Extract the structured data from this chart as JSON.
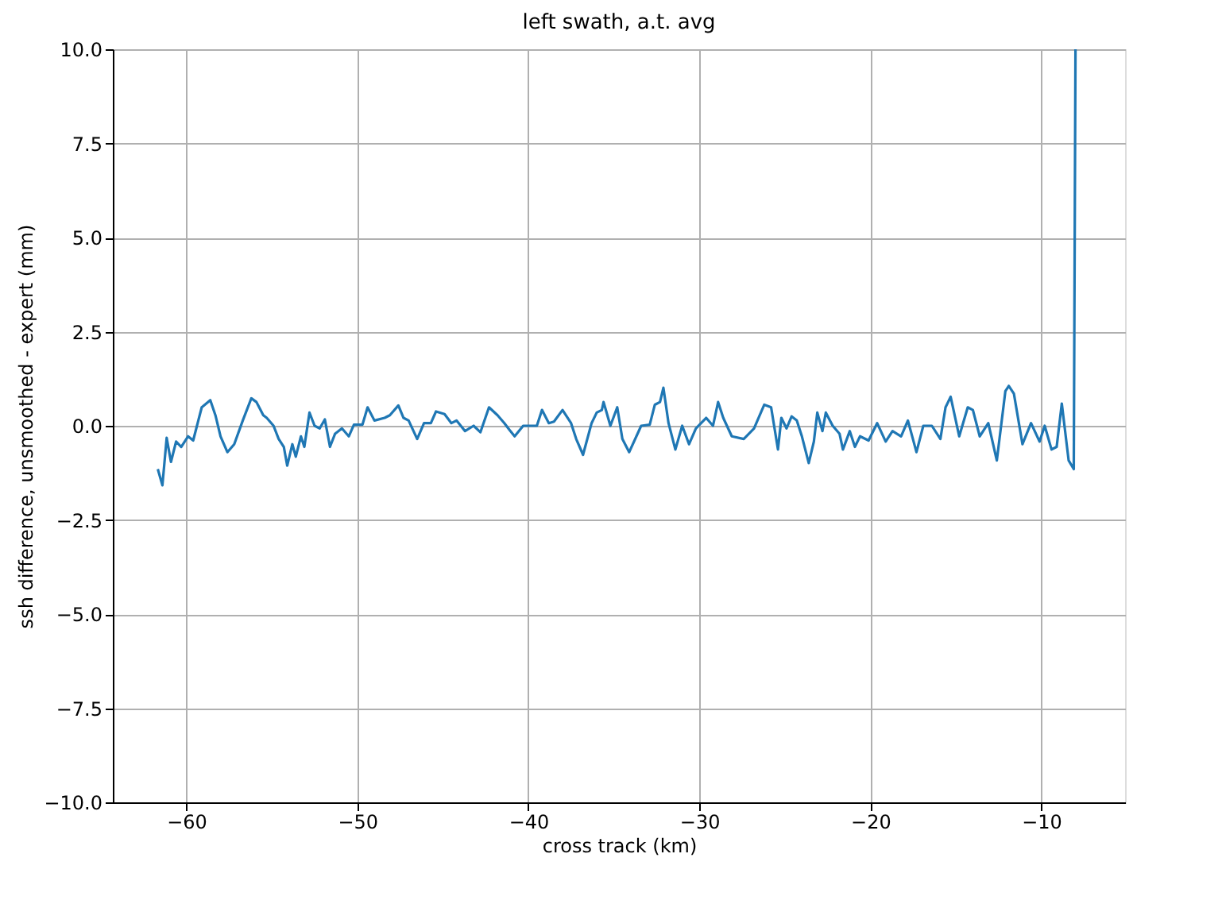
{
  "chart_data": {
    "type": "line",
    "title": "left swath, a.t. avg",
    "xlabel": "cross track (km)",
    "ylabel": "ssh difference, unsmoothed - expert (mm)",
    "xlim": [
      -64.3,
      -5.1
    ],
    "xticks": [
      -60,
      -50,
      -40,
      -30,
      -20,
      -10
    ],
    "ylim": [
      -10,
      10
    ],
    "yticks": [
      {
        "value": -10,
        "label": "−10.0"
      },
      {
        "value": -7.5,
        "label": "−7.5"
      },
      {
        "value": -5,
        "label": "−5.0"
      },
      {
        "value": -2.5,
        "label": "−2.5"
      },
      {
        "value": 0,
        "label": "0.0"
      },
      {
        "value": 2.5,
        "label": "2.5"
      },
      {
        "value": 5,
        "label": "5.0"
      },
      {
        "value": 7.5,
        "label": "7.5"
      },
      {
        "value": 10,
        "label": "10.0"
      }
    ],
    "grid": true,
    "marker": "none",
    "line_style": "solid",
    "series": [
      {
        "color": "#1f77b4",
        "x": [
          -61.67,
          -61.4,
          -61.15,
          -60.9,
          -60.6,
          -60.3,
          -59.9,
          -59.6,
          -59.3,
          -59.1,
          -58.6,
          -58.3,
          -58.0,
          -57.6,
          -57.2,
          -56.7,
          -56.2,
          -55.9,
          -55.5,
          -55.3,
          -54.9,
          -54.6,
          -54.3,
          -54.1,
          -53.8,
          -53.6,
          -53.3,
          -53.1,
          -52.8,
          -52.5,
          -52.2,
          -51.9,
          -51.6,
          -51.3,
          -50.9,
          -50.5,
          -50.2,
          -49.7,
          -49.4,
          -49.0,
          -48.4,
          -48.1,
          -47.6,
          -47.3,
          -47.0,
          -46.5,
          -46.1,
          -45.7,
          -45.4,
          -44.9,
          -44.5,
          -44.2,
          -43.7,
          -43.2,
          -42.8,
          -42.3,
          -41.8,
          -41.4,
          -41.1,
          -40.8,
          -40.3,
          -39.5,
          -39.2,
          -38.8,
          -38.5,
          -38.0,
          -37.5,
          -37.2,
          -36.8,
          -36.3,
          -36.0,
          -35.7,
          -35.6,
          -35.2,
          -34.8,
          -34.5,
          -34.1,
          -33.4,
          -32.9,
          -32.6,
          -32.3,
          -32.1,
          -31.8,
          -31.4,
          -31.0,
          -30.6,
          -30.2,
          -29.6,
          -29.2,
          -28.9,
          -28.6,
          -28.1,
          -27.4,
          -26.8,
          -26.2,
          -25.8,
          -25.4,
          -25.2,
          -24.9,
          -24.6,
          -24.3,
          -24.0,
          -23.6,
          -23.3,
          -23.1,
          -22.8,
          -22.6,
          -22.2,
          -21.8,
          -21.6,
          -21.2,
          -20.9,
          -20.6,
          -20.1,
          -19.6,
          -19.1,
          -18.7,
          -18.2,
          -17.8,
          -17.3,
          -16.9,
          -16.4,
          -15.9,
          -15.6,
          -15.3,
          -14.8,
          -14.3,
          -14.0,
          -13.6,
          -13.1,
          -12.6,
          -12.1,
          -11.9,
          -11.6,
          -11.1,
          -10.6,
          -10.1,
          -9.8,
          -9.4,
          -9.1,
          -8.8,
          -8.4,
          -8.1,
          -8.0
        ],
        "values": [
          -1.15,
          -1.58,
          -0.32,
          -0.96,
          -0.42,
          -0.56,
          -0.28,
          -0.39,
          0.14,
          0.49,
          0.68,
          0.28,
          -0.28,
          -0.7,
          -0.49,
          0.14,
          0.73,
          0.63,
          0.28,
          0.21,
          0,
          -0.35,
          -0.56,
          -1.06,
          -0.49,
          -0.82,
          -0.28,
          -0.56,
          0.35,
          0,
          -0.07,
          0.17,
          -0.56,
          -0.21,
          -0.07,
          -0.28,
          0.03,
          0.03,
          0.49,
          0.14,
          0.21,
          0.28,
          0.54,
          0.21,
          0.14,
          -0.35,
          0.07,
          0.07,
          0.38,
          0.31,
          0.07,
          0.14,
          -0.14,
          0,
          -0.17,
          0.49,
          0.28,
          0.07,
          -0.11,
          -0.28,
          0,
          0,
          0.42,
          0.07,
          0.11,
          0.42,
          0.07,
          -0.35,
          -0.77,
          0.07,
          0.35,
          0.42,
          0.63,
          0,
          0.49,
          -0.35,
          -0.7,
          0,
          0.03,
          0.56,
          0.63,
          1.01,
          0.07,
          -0.63,
          0,
          -0.49,
          -0.07,
          0.21,
          0,
          0.63,
          0.21,
          -0.28,
          -0.35,
          -0.07,
          0.56,
          0.49,
          -0.63,
          0.21,
          -0.07,
          0.25,
          0.14,
          -0.28,
          -0.99,
          -0.42,
          0.35,
          -0.14,
          0.35,
          0,
          -0.21,
          -0.63,
          -0.14,
          -0.56,
          -0.28,
          -0.39,
          0.07,
          -0.42,
          -0.14,
          -0.28,
          0.14,
          -0.7,
          0,
          0,
          -0.35,
          0.49,
          0.77,
          -0.28,
          0.49,
          0.42,
          -0.28,
          0.07,
          -0.92,
          0.92,
          1.06,
          0.85,
          -0.49,
          0.07,
          -0.42,
          0,
          -0.63,
          -0.56,
          0.59,
          -0.92,
          -1.15,
          10
        ]
      }
    ]
  }
}
